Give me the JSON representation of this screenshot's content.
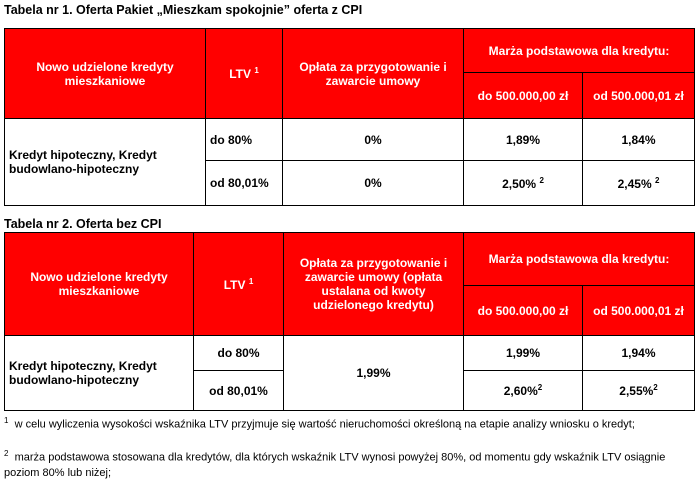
{
  "table1": {
    "caption": "Tabela nr 1. Oferta Pakiet „Mieszkam spokojnie” oferta z CPI",
    "headers": [
      "Nowo udzielone kredyty mieszkaniowe",
      {
        "text": "LTV",
        "sup": "1"
      },
      "Opłata za przygotowanie i zawarcie umowy",
      "Marża podstawowa dla kredytu:"
    ],
    "subheaders": [
      "do 500.000,00 zł",
      "od 500.000,01 zł"
    ],
    "row_label": "Kredyt hipoteczny, Kredyt budowlano-hipoteczny",
    "rows": [
      [
        "do 80%",
        "0%",
        "1,89%",
        "1,84%"
      ],
      [
        "od 80,01%",
        "0%",
        {
          "text": "2,50%",
          "sup": "2"
        },
        {
          "text": "2,45%",
          "sup": "2"
        }
      ]
    ]
  },
  "table2": {
    "caption": "Tabela nr 2. Oferta bez CPI",
    "headers": [
      "Nowo udzielone kredyty mieszkaniowe",
      {
        "text": "LTV",
        "sup": "1"
      },
      "Opłata za przygotowanie i zawarcie umowy (opłata ustalana od kwoty udzielonego kredytu)",
      "Marża podstawowa dla kredytu:"
    ],
    "subheaders": [
      "do 500.000,00 zł",
      "od 500.000,01 zł"
    ],
    "row_label": "Kredyt hipoteczny, Kredyt budowlano-hipoteczny",
    "fee": "1,99%",
    "rows": [
      [
        "do 80%",
        "1,99%",
        "1,94%"
      ],
      [
        "od 80,01%",
        {
          "text": "2,60%",
          "sup": "2"
        },
        {
          "text": "2,55%",
          "sup": "2"
        }
      ]
    ]
  },
  "footnotes": [
    {
      "mark": "1",
      "text": "w celu wyliczenia wysokości wskaźnika LTV przyjmuje się wartość nieruchomości określoną na etapie analizy wniosku o kredyt;"
    },
    {
      "mark": "2",
      "text": "marża podstawowa stosowana dla kredytów, dla których wskaźnik LTV wynosi powyżej 80%, od momentu gdy wskaźnik LTV osiągnie poziom 80% lub niżej;"
    }
  ]
}
